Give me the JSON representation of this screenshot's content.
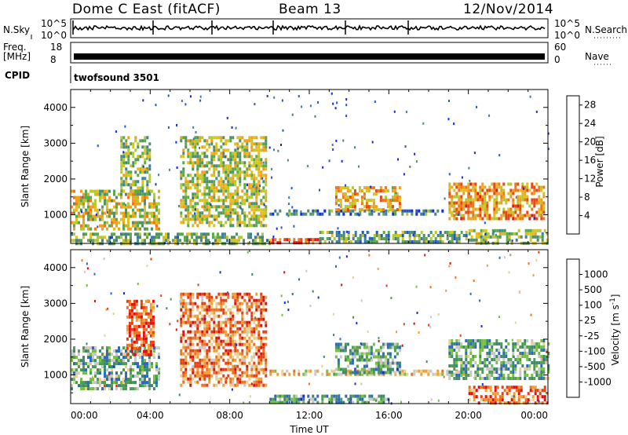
{
  "header": {
    "station": "Dome C East (fitACF)",
    "beam": "Beam 13",
    "date": "12/Nov/2014"
  },
  "params": {
    "nsky_label": "N.Sky",
    "nsky_ticks": [
      "10^5",
      "10^0"
    ],
    "nsearch_label": "N.Search",
    "nsearch_ticks": [
      "10^5",
      "10^0"
    ],
    "freq_label_1": "Freq.",
    "freq_label_2": "[MHz]",
    "freq_ticks": [
      "18",
      "8"
    ],
    "nave_label": "Nave",
    "nave_ticks": [
      "60",
      "0"
    ],
    "cpid_label": "CPID",
    "cpid_text": "twofsound 3501"
  },
  "colors": {
    "power_scale": [
      "#1428e6",
      "#2356c8",
      "#3d7ea0",
      "#4f8f6a",
      "#5aa84a",
      "#b4c832",
      "#e0c020",
      "#f0a020",
      "#f07818",
      "#e84818",
      "#e01818"
    ],
    "velocity_scale": [
      "#1430d8",
      "#2c6ac0",
      "#3c8870",
      "#4e9e50",
      "#78c040",
      "#c8c8c8",
      "#e8d090",
      "#f0a030",
      "#f07020",
      "#e84010",
      "#e01010"
    ]
  },
  "chart_data": [
    {
      "type": "heatmap",
      "panel": "power",
      "xlabel": "",
      "ylabel": "Slant Range [km]",
      "xlim": [
        0,
        24
      ],
      "ylim": [
        200,
        4500
      ],
      "y_ticks": [
        "1000",
        "2000",
        "3000",
        "4000"
      ],
      "colorbar_label": "Power [dB]",
      "colorbar_ticks": [
        "4",
        "8",
        "12",
        "16",
        "20",
        "24",
        "28"
      ],
      "colorbar_range": [
        0,
        30
      ],
      "echo_regions": [
        {
          "t0": 0.0,
          "t1": 4.5,
          "r0": 600,
          "r1": 1700,
          "level": 0.55
        },
        {
          "t0": 2.5,
          "t1": 4.0,
          "r0": 1600,
          "r1": 3200,
          "level": 0.45
        },
        {
          "t0": 5.5,
          "t1": 9.8,
          "r0": 700,
          "r1": 3200,
          "level": 0.5
        },
        {
          "t0": 0.0,
          "t1": 10.0,
          "r0": 200,
          "r1": 500,
          "level": 0.4
        },
        {
          "t0": 10.0,
          "t1": 20.0,
          "r0": 1000,
          "r1": 1150,
          "level": 0.25
        },
        {
          "t0": 10.0,
          "t1": 12.5,
          "r0": 200,
          "r1": 350,
          "level": 0.9
        },
        {
          "t0": 13.3,
          "t1": 16.5,
          "r0": 1100,
          "r1": 1800,
          "level": 0.65
        },
        {
          "t0": 12.5,
          "t1": 20.0,
          "r0": 200,
          "r1": 550,
          "level": 0.35
        },
        {
          "t0": 19.0,
          "t1": 23.8,
          "r0": 900,
          "r1": 1900,
          "level": 0.7
        },
        {
          "t0": 20.0,
          "t1": 24.0,
          "r0": 200,
          "r1": 600,
          "level": 0.45
        }
      ]
    },
    {
      "type": "heatmap",
      "panel": "velocity",
      "xlabel": "Time UT",
      "ylabel": "Slant Range [km]",
      "xlim": [
        0,
        24
      ],
      "ylim": [
        200,
        4500
      ],
      "x_ticks": [
        "00:00",
        "04:00",
        "08:00",
        "12:00",
        "16:00",
        "20:00",
        "00:00"
      ],
      "y_ticks": [
        "1000",
        "2000",
        "3000",
        "4000"
      ],
      "colorbar_label": "Velocity [m s",
      "colorbar_label_sup": "-1",
      "colorbar_label_end": "]",
      "colorbar_ticks": [
        "1000",
        "500",
        "100",
        "25",
        "-25",
        "-100",
        "-500",
        "-1000"
      ],
      "echo_regions": [
        {
          "t0": 0.0,
          "t1": 4.5,
          "r0": 600,
          "r1": 1800,
          "level": 0.35
        },
        {
          "t0": 2.8,
          "t1": 4.2,
          "r0": 1600,
          "r1": 3100,
          "level": 0.8
        },
        {
          "t0": 5.5,
          "t1": 9.8,
          "r0": 700,
          "r1": 3300,
          "level": 0.75
        },
        {
          "t0": 10.0,
          "t1": 20.0,
          "r0": 1000,
          "r1": 1150,
          "level": 0.55
        },
        {
          "t0": 10.0,
          "t1": 16.0,
          "r0": 200,
          "r1": 450,
          "level": 0.3
        },
        {
          "t0": 13.3,
          "t1": 16.5,
          "r0": 1100,
          "r1": 1900,
          "level": 0.3
        },
        {
          "t0": 19.0,
          "t1": 24.0,
          "r0": 900,
          "r1": 2000,
          "level": 0.35
        },
        {
          "t0": 20.0,
          "t1": 24.0,
          "r0": 200,
          "r1": 700,
          "level": 0.8
        }
      ]
    }
  ]
}
